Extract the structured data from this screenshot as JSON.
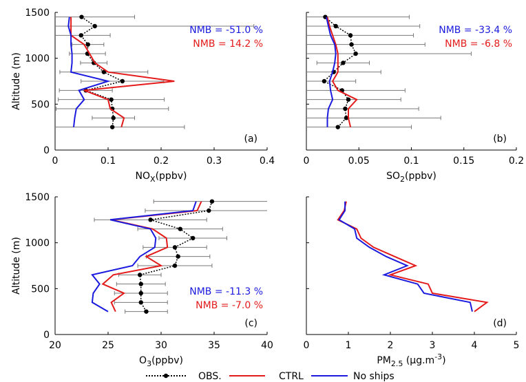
{
  "chart_data": [
    {
      "type": "line",
      "panel_label": "(a)",
      "xlabel": "NO",
      "xlabel_sub": "X",
      "xlabel_tail": "(ppbv)",
      "ylabel": "Altitude (m)",
      "xlim": [
        0,
        0.4
      ],
      "xticks": [
        0,
        0.1,
        0.2,
        0.3,
        0.4
      ],
      "ylim": [
        0,
        1500
      ],
      "yticks": [
        0,
        500,
        1000,
        1500
      ],
      "ytick_labels": true,
      "annotation_corner": "upper right",
      "annotations": [
        {
          "text": "NMB = -51.0 %",
          "color": "#1a1adf"
        },
        {
          "text": "NMB = 14.2 %",
          "color": "#e41a1a"
        }
      ],
      "y": [
        250,
        350,
        450,
        550,
        650,
        750,
        850,
        950,
        1050,
        1150,
        1250,
        1350,
        1450
      ],
      "series": [
        {
          "name": "OBS.",
          "color": "#000000",
          "style": "dotted-marker",
          "values": [
            0.108,
            0.11,
            0.108,
            0.106,
            0.058,
            0.127,
            0.092,
            0.073,
            0.061,
            0.062,
            0.049,
            0.075,
            0.05
          ],
          "errors": [
            0.136,
            0.04,
            0.106,
            0.1,
            0.05,
            0.078,
            0.083,
            0.025,
            0.034,
            0.03,
            0.055,
            0.3,
            0.1
          ]
        },
        {
          "name": "CTRL",
          "color": "#e41a1a",
          "style": "solid",
          "values": [
            0.125,
            0.13,
            0.104,
            0.1,
            0.055,
            0.225,
            0.1,
            0.075,
            0.065,
            0.055,
            0.03,
            0.03,
            0.03
          ]
        },
        {
          "name": "No ships",
          "color": "#1a1adf",
          "style": "solid",
          "values": [
            0.035,
            0.037,
            0.04,
            0.055,
            0.045,
            0.1,
            0.03,
            0.032,
            0.032,
            0.03,
            0.03,
            0.025,
            0.027
          ]
        }
      ]
    },
    {
      "type": "line",
      "panel_label": "(b)",
      "xlabel": "SO",
      "xlabel_sub": "2",
      "xlabel_tail": "(ppbv)",
      "xlim": [
        0,
        0.2
      ],
      "xticks": [
        0,
        0.05,
        0.1,
        0.15,
        0.2
      ],
      "ylim": [
        0,
        1500
      ],
      "yticks": [
        0,
        500,
        1000,
        1500
      ],
      "ytick_labels": false,
      "annotation_corner": "upper right",
      "annotations": [
        {
          "text": "NMB = -33.4 %",
          "color": "#1a1adf"
        },
        {
          "text": "NMB = -6.8 %",
          "color": "#e41a1a"
        }
      ],
      "y": [
        250,
        350,
        450,
        550,
        650,
        750,
        850,
        950,
        1050,
        1150,
        1250,
        1350,
        1450
      ],
      "series": [
        {
          "color": "#000000",
          "style": "dotted-marker",
          "values": [
            0.03,
            0.038,
            0.037,
            0.04,
            0.034,
            0.017,
            0.026,
            0.035,
            0.047,
            0.043,
            0.042,
            0.028,
            0.018
          ],
          "errors": [
            0.07,
            0.09,
            0.07,
            0.05,
            0.06,
            0.03,
            0.045,
            0.025,
            0.11,
            0.07,
            0.06,
            0.08,
            0.08
          ]
        },
        {
          "color": "#e41a1a",
          "style": "solid",
          "values": [
            0.042,
            0.04,
            0.04,
            0.048,
            0.03,
            0.025,
            0.03,
            0.03,
            0.03,
            0.028,
            0.025,
            0.022,
            0.02
          ]
        },
        {
          "color": "#1a1adf",
          "style": "solid",
          "values": [
            0.02,
            0.02,
            0.021,
            0.025,
            0.023,
            0.022,
            0.025,
            0.027,
            0.028,
            0.027,
            0.023,
            0.021,
            0.019
          ]
        }
      ]
    },
    {
      "type": "line",
      "panel_label": "(c)",
      "xlabel": "O",
      "xlabel_sub": "3",
      "xlabel_tail": "(ppbv)",
      "ylabel": "Altitude (m)",
      "xlim": [
        20,
        40
      ],
      "xticks": [
        20,
        25,
        30,
        35,
        40
      ],
      "ylim": [
        0,
        1500
      ],
      "yticks": [
        0,
        500,
        1000,
        1500
      ],
      "ytick_labels": true,
      "annotation_corner": "lower right",
      "annotations": [
        {
          "text": "NMB = -11.3 %",
          "color": "#1a1adf"
        },
        {
          "text": "NMB = -7.0 %",
          "color": "#e41a1a"
        }
      ],
      "y": [
        250,
        350,
        450,
        550,
        650,
        750,
        850,
        950,
        1050,
        1150,
        1250,
        1350,
        1450
      ],
      "series": [
        {
          "color": "#000000",
          "style": "dotted-marker",
          "values": [
            28.6,
            28.1,
            28.1,
            28.1,
            28,
            31.3,
            31.6,
            31.3,
            33,
            31.8,
            29,
            34.5,
            34.8
          ],
          "errors": [
            2,
            2.5,
            2.5,
            2.3,
            2,
            3.5,
            3,
            3,
            3.2,
            4,
            5.3,
            6,
            5.5
          ]
        },
        {
          "color": "#e41a1a",
          "style": "solid",
          "values": [
            25.7,
            25.3,
            26.5,
            24.5,
            25.5,
            30,
            28.6,
            30.6,
            30.5,
            29.2,
            25.3,
            33.4,
            33.8
          ]
        },
        {
          "color": "#1a1adf",
          "style": "solid",
          "values": [
            25,
            23.5,
            23.6,
            24.2,
            23.5,
            27.3,
            28,
            29.4,
            29.5,
            29,
            25.2,
            33,
            33.3
          ]
        }
      ]
    },
    {
      "type": "line",
      "panel_label": "(d)",
      "xlabel": "PM",
      "xlabel_sub": "2.5",
      "xlabel_tail": " (μg.m",
      "xlabel_sup": "-3",
      "xlabel_end": ")",
      "xlim": [
        0,
        5
      ],
      "xticks": [
        0,
        1,
        2,
        3,
        4,
        5
      ],
      "ylim": [
        0,
        1500
      ],
      "yticks": [
        0,
        500,
        1000,
        1500
      ],
      "ytick_labels": false,
      "y": [
        250,
        350,
        450,
        550,
        650,
        750,
        850,
        950,
        1050,
        1150,
        1250,
        1350,
        1450
      ],
      "series": [
        {
          "color": "#e41a1a",
          "style": "solid",
          "values": [
            4.0,
            4.3,
            3.0,
            2.9,
            2.0,
            2.6,
            2.1,
            1.6,
            1.3,
            1.2,
            0.75,
            0.9,
            0.95
          ]
        },
        {
          "color": "#1a1adf",
          "style": "solid",
          "values": [
            3.95,
            3.9,
            2.8,
            2.65,
            1.85,
            2.4,
            1.9,
            1.5,
            1.2,
            1.15,
            0.78,
            0.92,
            0.92
          ]
        }
      ]
    }
  ]
}
